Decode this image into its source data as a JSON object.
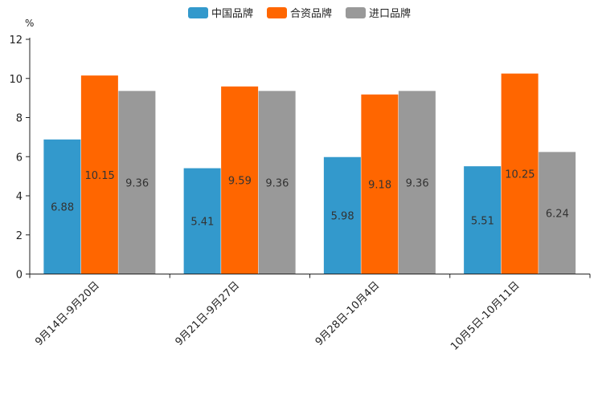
{
  "chart_data": {
    "type": "bar",
    "title": "",
    "xlabel": "",
    "ylabel": "%",
    "ylim": [
      0,
      12
    ],
    "yticks": [
      0,
      2,
      4,
      6,
      8,
      10,
      12
    ],
    "legend_position": "top-center",
    "grid": false,
    "categories": [
      "9月14日-9月20日",
      "9月21日-9月27日",
      "9月28日-10月4日",
      "10月5日-10月11日"
    ],
    "series": [
      {
        "name": "中国品牌",
        "color": "#3399cc",
        "values": [
          6.88,
          5.41,
          5.98,
          5.51
        ]
      },
      {
        "name": "合资品牌",
        "color": "#ff6600",
        "values": [
          10.15,
          9.59,
          9.18,
          10.25
        ]
      },
      {
        "name": "进口品牌",
        "color": "#999999",
        "values": [
          9.36,
          9.36,
          9.36,
          6.24
        ]
      }
    ]
  }
}
